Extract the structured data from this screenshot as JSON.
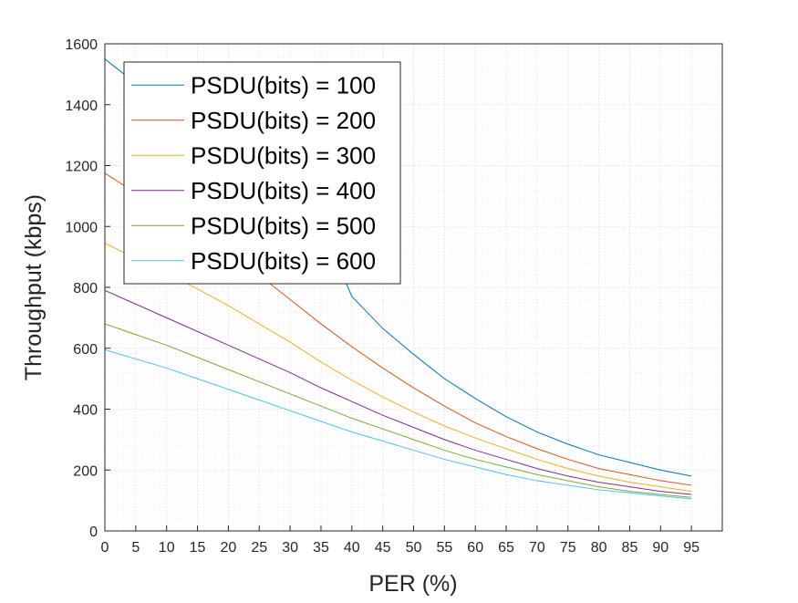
{
  "chart_data": {
    "type": "line",
    "title": "",
    "xlabel": "PER (%)",
    "ylabel": "Throughput (kbps)",
    "xlim": [
      0,
      100
    ],
    "ylim": [
      0,
      1600
    ],
    "xticks": [
      0,
      5,
      10,
      15,
      20,
      25,
      30,
      35,
      40,
      45,
      50,
      55,
      60,
      65,
      70,
      75,
      80,
      85,
      90,
      95
    ],
    "yticks": [
      0,
      200,
      400,
      600,
      800,
      1000,
      1200,
      1400,
      1600
    ],
    "grid": "on (major and minor, dotted)",
    "legend_position": "top-left",
    "x": [
      0,
      5,
      10,
      15,
      20,
      25,
      30,
      35,
      40,
      45,
      50,
      55,
      60,
      65,
      70,
      75,
      80,
      85,
      90,
      95
    ],
    "series": [
      {
        "name": "PSDU(bits) = 100",
        "color": "#0072BD",
        "values": [
          1550,
          1470,
          1395,
          1315,
          1240,
          1160,
          1085,
          1005,
          770,
          665,
          580,
          500,
          435,
          375,
          325,
          285,
          250,
          225,
          200,
          180
        ]
      },
      {
        "name": "PSDU(bits) = 200",
        "color": "#D95319",
        "values": [
          1175,
          1110,
          1050,
          985,
          920,
          840,
          760,
          680,
          605,
          535,
          470,
          410,
          355,
          310,
          270,
          235,
          205,
          185,
          165,
          150
        ]
      },
      {
        "name": "PSDU(bits) = 300",
        "color": "#EDB120",
        "values": [
          945,
          895,
          845,
          795,
          740,
          680,
          620,
          555,
          495,
          440,
          390,
          345,
          305,
          270,
          235,
          205,
          180,
          160,
          145,
          130
        ]
      },
      {
        "name": "PSDU(bits) = 400",
        "color": "#7E2F8E",
        "values": [
          790,
          745,
          700,
          655,
          610,
          565,
          520,
          470,
          425,
          380,
          340,
          300,
          265,
          235,
          205,
          180,
          160,
          145,
          130,
          120
        ]
      },
      {
        "name": "PSDU(bits) = 500",
        "color": "#77AC30",
        "values": [
          680,
          645,
          610,
          570,
          530,
          490,
          450,
          410,
          370,
          335,
          300,
          265,
          235,
          210,
          185,
          165,
          145,
          130,
          120,
          110
        ]
      },
      {
        "name": "PSDU(bits) = 600",
        "color": "#4DBEEE",
        "values": [
          595,
          565,
          535,
          500,
          465,
          430,
          395,
          360,
          325,
          295,
          265,
          235,
          210,
          185,
          165,
          150,
          135,
          125,
          115,
          105
        ]
      }
    ]
  }
}
